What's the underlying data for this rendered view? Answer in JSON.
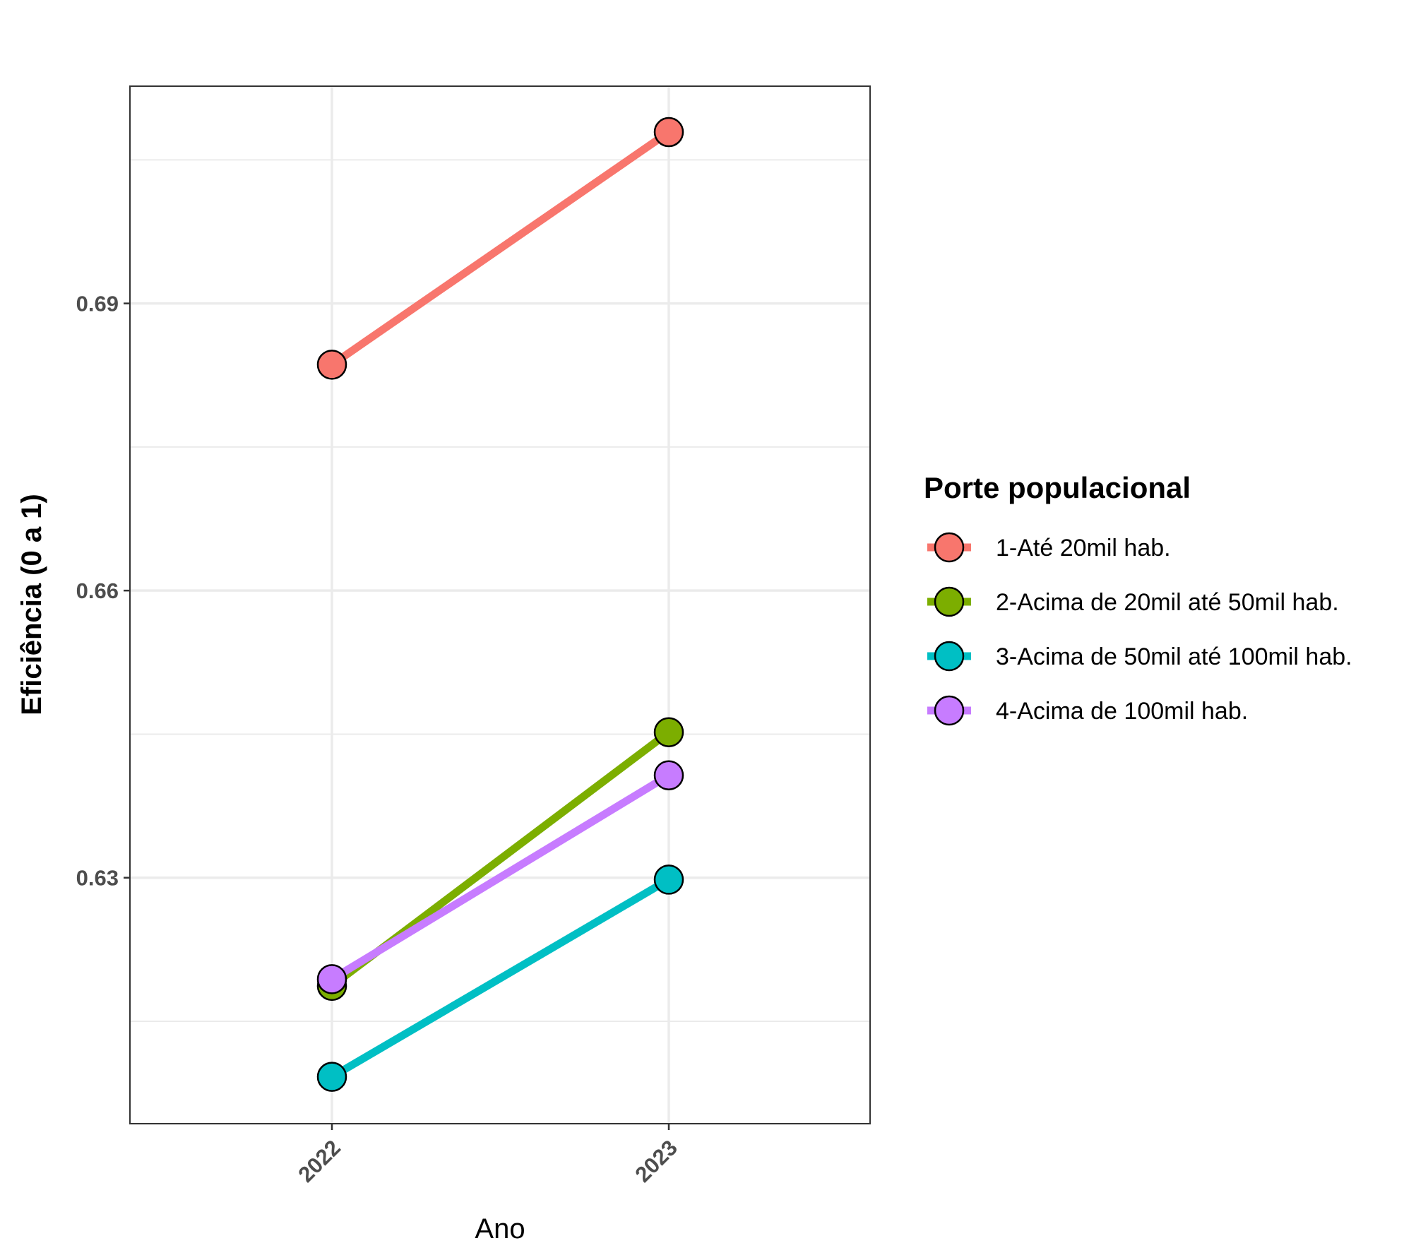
{
  "chart_data": {
    "type": "line",
    "x": [
      "2022",
      "2023"
    ],
    "xlabel": "Ano",
    "ylabel": "Eficiência (0 a 1)",
    "yticks": [
      0.63,
      0.66,
      0.69
    ],
    "ytick_labels": [
      "0.63",
      "0.66",
      "0.69"
    ],
    "ylim": [
      0.6043,
      0.7127
    ],
    "grid": true,
    "legend_title": "Porte populacional",
    "legend_position": "right",
    "series": [
      {
        "name": "1-Até 20mil hab.",
        "color": "#F8766D",
        "values": [
          0.6836,
          0.7079
        ]
      },
      {
        "name": "2-Acima de 20mil até 50mil hab.",
        "color": "#7CAE00",
        "values": [
          0.6187,
          0.6452
        ]
      },
      {
        "name": "3-Acima de 50mil até 100mil hab.",
        "color": "#00BFC4",
        "values": [
          0.6092,
          0.6298
        ]
      },
      {
        "name": "4-Acima de 100mil hab.",
        "color": "#C77CFF",
        "values": [
          0.6194,
          0.6407
        ]
      }
    ]
  }
}
